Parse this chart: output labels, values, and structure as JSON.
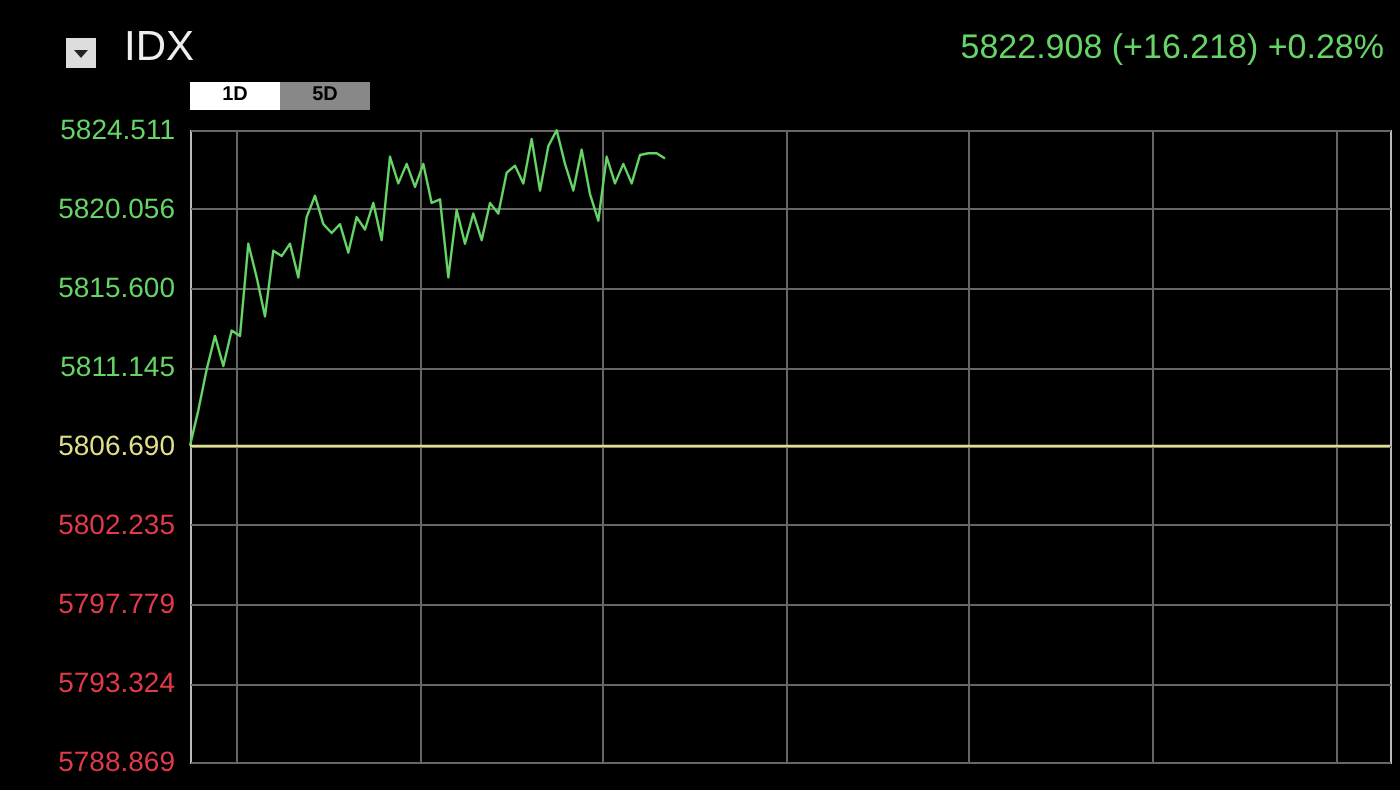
{
  "chart_data": {
    "type": "line",
    "title": "IDX",
    "annotations": [
      "5822.908 (+16.218) +0.28%",
      "1D",
      "5D"
    ],
    "categories": [
      null,
      null,
      null,
      null,
      null,
      null,
      null,
      null,
      null,
      null,
      null,
      null,
      null,
      null,
      null,
      null,
      null,
      null,
      null,
      null,
      null,
      null,
      null,
      null,
      null,
      null,
      null,
      null,
      null,
      null,
      null,
      null,
      null,
      null,
      null,
      null,
      null,
      null,
      null,
      null,
      null,
      null,
      null,
      null,
      null,
      null,
      null,
      null,
      null,
      null,
      null,
      null,
      null,
      null,
      null,
      null,
      null,
      null,
      null,
      null,
      null,
      null,
      null,
      null,
      null,
      null,
      null,
      null,
      null,
      null,
      null,
      null,
      null,
      null,
      null,
      null,
      null,
      null,
      null,
      null,
      null,
      null,
      null,
      null,
      null,
      null,
      null,
      null,
      null,
      null,
      null,
      null,
      null,
      null,
      null,
      null,
      null,
      null,
      null,
      null,
      null,
      null,
      null,
      null,
      null,
      null,
      null,
      null,
      null,
      null,
      null,
      null,
      null,
      null,
      null,
      null,
      null,
      null,
      null,
      null,
      null,
      null,
      null,
      null,
      null,
      null,
      null,
      null,
      null,
      null,
      null,
      null,
      null,
      null,
      null,
      null,
      null,
      null,
      null,
      null,
      null,
      null,
      null,
      null,
      null
    ],
    "series": [
      {
        "color": "#66d466",
        "values": [
          5806.7,
          5808.7,
          5811.0,
          5812.9,
          5811.2,
          5813.2,
          5812.9,
          5818.1,
          5816.2,
          5814.0,
          5817.7,
          5817.4,
          5818.1,
          5816.2,
          5819.6,
          5820.8,
          5819.2,
          5818.7,
          5819.2,
          5817.6,
          5819.6,
          5818.9,
          5820.4,
          5818.3,
          5823.0,
          5821.5,
          5822.6,
          5821.3,
          5822.6,
          5820.4,
          5820.6,
          5816.2,
          5820.0,
          5818.1,
          5819.8,
          5818.3,
          5820.4,
          5819.8,
          5822.1,
          5822.5,
          5821.5,
          5824.0,
          5821.1,
          5823.6,
          5824.5,
          5822.6,
          5821.1,
          5823.4,
          5820.9,
          5819.4,
          5823.0,
          5821.5,
          5822.6,
          5821.5,
          5823.1,
          5823.2,
          5823.2,
          5822.9,
          null,
          null,
          null,
          null,
          null,
          null,
          null,
          null,
          null,
          null,
          null,
          null,
          null,
          null,
          null,
          null,
          null,
          null,
          null,
          null,
          null,
          null,
          null,
          null,
          null,
          null,
          null,
          null,
          null,
          null,
          null,
          null,
          null,
          null,
          null,
          null,
          null,
          null,
          null,
          null,
          null,
          null,
          null,
          null,
          null,
          null,
          null,
          null,
          null,
          null,
          null,
          null,
          null,
          null,
          null,
          null,
          null,
          null,
          null,
          null,
          null,
          null,
          null,
          null,
          null,
          null,
          null,
          null,
          null,
          null,
          null,
          null,
          null,
          null,
          null,
          null,
          null,
          null,
          null,
          null,
          null,
          null,
          null,
          null,
          null,
          null,
          null
        ]
      }
    ],
    "ylim": [
      5788.869,
      5824.511
    ],
    "yticks": [
      {
        "value": 5788.869,
        "label": "5788.869"
      },
      {
        "value": 5793.324,
        "label": "5793.324"
      },
      {
        "value": 5797.779,
        "label": "5797.779"
      },
      {
        "value": 5802.235,
        "label": "5802.235"
      },
      {
        "value": 5806.69,
        "label": "5806.690"
      },
      {
        "value": 5811.145,
        "label": "5811.145"
      },
      {
        "value": 5815.6,
        "label": "5815.600"
      },
      {
        "value": 5820.056,
        "label": "5820.056"
      },
      {
        "value": 5824.511,
        "label": "5824.511"
      }
    ],
    "ref_lines": [
      {
        "axis": "y",
        "value": 5806.69,
        "color": "#e0df8a"
      }
    ],
    "tick_labels": "y",
    "grid": true,
    "marker": "none",
    "line_style": "solid",
    "legend": false
  }
}
